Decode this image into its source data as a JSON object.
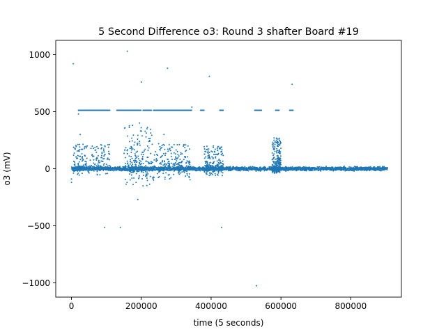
{
  "chart_data": {
    "type": "scatter",
    "title": "5 Second Difference o3: Round 3 shafter Board #19",
    "xlabel": "time (5 seconds)",
    "ylabel": "o3 (mV)",
    "xlim": [
      -45000,
      945000
    ],
    "ylim": [
      -1125,
      1125
    ],
    "x_ticks": [
      0,
      200000,
      400000,
      600000,
      800000
    ],
    "x_tick_labels": [
      "0",
      "200000",
      "400000",
      "600000",
      "800000"
    ],
    "y_ticks": [
      -1000,
      -500,
      0,
      500,
      1000
    ],
    "y_tick_labels": [
      "−1000",
      "−500",
      "0",
      "500",
      "1000"
    ],
    "grid": false,
    "legend": "none",
    "marker_color": "#1f77b4",
    "x_range": [
      0,
      905000
    ],
    "dense_band": {
      "x": [
        0,
        905000
      ],
      "y": [
        -40,
        40
      ]
    },
    "saturation_level": 512,
    "saturation_segments": [
      [
        20000,
        110000
      ],
      [
        130000,
        200000
      ],
      [
        205000,
        230000
      ],
      [
        235000,
        320000
      ],
      [
        320000,
        345000
      ],
      [
        370000,
        380000
      ],
      [
        425000,
        435000
      ],
      [
        525000,
        545000
      ],
      [
        585000,
        595000
      ],
      [
        625000,
        635000
      ]
    ],
    "spike_regions": [
      {
        "x": [
          5000,
          110000
        ],
        "ymax": 220,
        "ymin": -60
      },
      {
        "x": [
          150000,
          230000
        ],
        "ymax": 380,
        "ymin": -150
      },
      {
        "x": [
          230000,
          340000
        ],
        "ymax": 220,
        "ymin": -100
      },
      {
        "x": [
          380000,
          435000
        ],
        "ymax": 200,
        "ymin": -60
      },
      {
        "x": [
          575000,
          600000
        ],
        "ymax": 280,
        "ymin": -40
      }
    ],
    "points": [
      {
        "x": 5000,
        "y": 920
      },
      {
        "x": 160000,
        "y": 1030
      },
      {
        "x": 200000,
        "y": 760
      },
      {
        "x": 275000,
        "y": 880
      },
      {
        "x": 395000,
        "y": 810
      },
      {
        "x": 632000,
        "y": 740
      },
      {
        "x": 345000,
        "y": 540
      },
      {
        "x": 20000,
        "y": 480
      },
      {
        "x": 25000,
        "y": 300
      },
      {
        "x": 45000,
        "y": 200
      },
      {
        "x": 175000,
        "y": 380
      },
      {
        "x": 195000,
        "y": 400
      },
      {
        "x": 265000,
        "y": 300
      },
      {
        "x": 0,
        "y": -90
      },
      {
        "x": 0,
        "y": -120
      },
      {
        "x": 185000,
        "y": -120
      },
      {
        "x": 205000,
        "y": -150
      },
      {
        "x": 190000,
        "y": -270
      },
      {
        "x": 95000,
        "y": -515
      },
      {
        "x": 140000,
        "y": -515
      },
      {
        "x": 430000,
        "y": -515
      },
      {
        "x": 530000,
        "y": -1025
      }
    ]
  }
}
